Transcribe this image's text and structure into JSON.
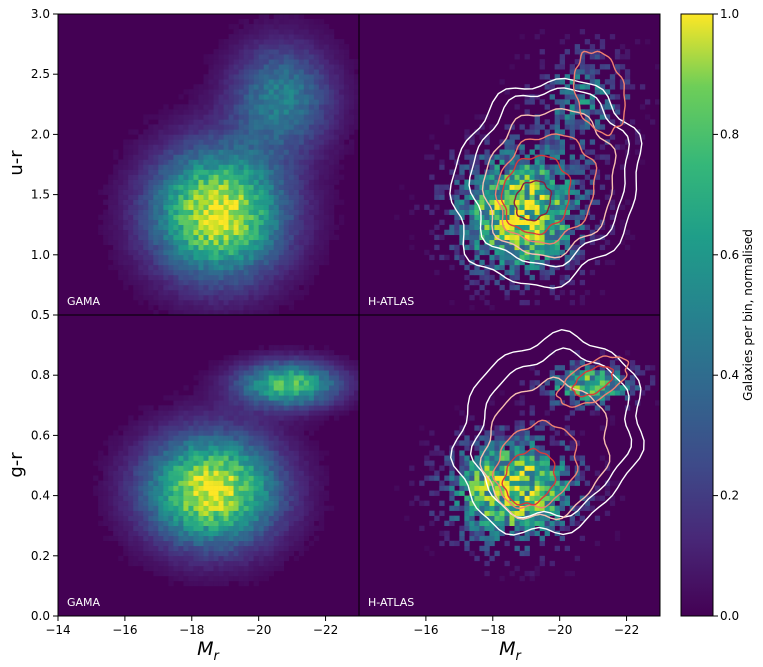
{
  "chart_data": {
    "type": "heatmap",
    "colorbar": {
      "label": "Galaxies per bin, normalised",
      "range": [
        0.0,
        1.0
      ],
      "ticks": [
        0.0,
        0.2,
        0.4,
        0.6,
        0.8,
        1.0
      ],
      "tick_labels": [
        "0.0",
        "0.2",
        "0.4",
        "0.6",
        "0.8",
        "1.0"
      ],
      "colormap": "viridis"
    },
    "x_axis": {
      "label": "M_r",
      "range": [
        -14,
        -23
      ],
      "left_ticks": [
        -14,
        -16,
        -18,
        -20,
        -22
      ],
      "left_tick_labels": [
        "−14",
        "−16",
        "−18",
        "−20",
        "−22"
      ],
      "right_ticks": [
        -16,
        -18,
        -20,
        -22
      ],
      "right_tick_labels": [
        "−16",
        "−18",
        "−20",
        "−22"
      ]
    },
    "rows": [
      {
        "ylabel": "u-r",
        "ylim": [
          0.5,
          3.0
        ],
        "ticks": [
          0.5,
          1.0,
          1.5,
          2.0,
          2.5,
          3.0
        ],
        "tick_labels": [
          "0.5",
          "1.0",
          "1.5",
          "2.0",
          "2.5",
          "3.0"
        ],
        "blobs": [
          {
            "x": -18.8,
            "y": 1.35,
            "sx": 1.3,
            "sy": 0.35,
            "amp": 1.0
          },
          {
            "x": -20.7,
            "y": 2.3,
            "sx": 1.0,
            "sy": 0.3,
            "amp": 0.45
          }
        ],
        "contours": [
          {
            "color": "white",
            "cx": -19.6,
            "cy": 1.6,
            "rx": 3.6,
            "ry": 1.05
          },
          {
            "color": "white",
            "cx": -19.7,
            "cy": 1.65,
            "rx": 3.0,
            "ry": 0.9
          },
          {
            "color": "pink",
            "cx": -19.7,
            "cy": 1.6,
            "rx": 2.5,
            "ry": 0.75
          },
          {
            "color": "salmon",
            "cx": -19.6,
            "cy": 1.55,
            "rx": 1.9,
            "ry": 0.55
          },
          {
            "color": "red",
            "cx": -19.3,
            "cy": 1.5,
            "rx": 1.3,
            "ry": 0.4
          },
          {
            "color": "darkred",
            "cx": -19.2,
            "cy": 1.45,
            "rx": 0.7,
            "ry": 0.2
          },
          {
            "color": "salmon",
            "cx": -21.2,
            "cy": 2.35,
            "rx": 0.9,
            "ry": 0.45
          }
        ]
      },
      {
        "ylabel": "g-r",
        "ylim": [
          0.0,
          1.0
        ],
        "ticks": [
          0.0,
          0.2,
          0.4,
          0.6,
          0.8
        ],
        "tick_labels": [
          "0.0",
          "0.2",
          "0.4",
          "0.6",
          "0.8"
        ],
        "blobs": [
          {
            "x": -18.6,
            "y": 0.42,
            "sx": 1.3,
            "sy": 0.12,
            "amp": 1.0
          },
          {
            "x": -20.9,
            "y": 0.77,
            "sx": 1.0,
            "sy": 0.05,
            "amp": 0.75
          }
        ],
        "contours": [
          {
            "color": "white",
            "cx": -19.7,
            "cy": 0.6,
            "rx": 3.6,
            "ry": 0.4
          },
          {
            "color": "white",
            "cx": -19.8,
            "cy": 0.6,
            "rx": 3.0,
            "ry": 0.33
          },
          {
            "color": "pink",
            "cx": -19.6,
            "cy": 0.55,
            "rx": 2.4,
            "ry": 0.28
          },
          {
            "color": "salmon",
            "cx": -19.3,
            "cy": 0.5,
            "rx": 1.6,
            "ry": 0.17
          },
          {
            "color": "red",
            "cx": -19.1,
            "cy": 0.46,
            "rx": 1.0,
            "ry": 0.11
          },
          {
            "color": "salmon",
            "cx": -21.0,
            "cy": 0.78,
            "rx": 1.4,
            "ry": 0.08
          },
          {
            "color": "red",
            "cx": -21.0,
            "cy": 0.78,
            "rx": 0.8,
            "ry": 0.05
          }
        ]
      }
    ],
    "panels": [
      {
        "label": "GAMA",
        "row": 0,
        "col": 0
      },
      {
        "label": "H-ATLAS",
        "row": 0,
        "col": 1
      },
      {
        "label": "GAMA",
        "row": 1,
        "col": 0
      },
      {
        "label": "H-ATLAS",
        "row": 1,
        "col": 1
      }
    ],
    "contour_colors": {
      "white": "#ffffff",
      "pink": "#f8c0b0",
      "salmon": "#f08070",
      "red": "#d83a3a",
      "darkred": "#8a2040"
    }
  }
}
